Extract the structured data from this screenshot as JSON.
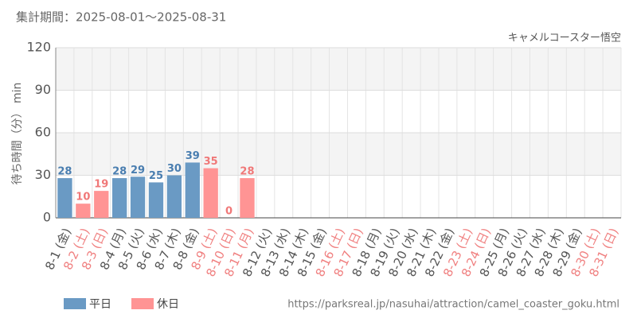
{
  "chart_data": {
    "type": "bar",
    "period": "集計期間：2025-08-01～2025-08-31",
    "title": "キャメルコースター悟空",
    "y_label": "待ち時間（分） min",
    "source": "https://parksreal.jp/nasuhai/attraction/camel_coaster_goku.html",
    "categories": [
      "8-1 (金)",
      "8-2 (土)",
      "8-3 (日)",
      "8-4 (月)",
      "8-5 (火)",
      "8-6 (水)",
      "8-7 (木)",
      "8-8 (金)",
      "8-9 (土)",
      "8-10 (日)",
      "8-11 (月)",
      "8-12 (火)",
      "8-13 (水)",
      "8-14 (木)",
      "8-15 (金)",
      "8-16 (土)",
      "8-17 (日)",
      "8-18 (月)",
      "8-19 (火)",
      "8-20 (水)",
      "8-21 (木)",
      "8-22 (金)",
      "8-23 (土)",
      "8-24 (日)",
      "8-25 (月)",
      "8-26 (火)",
      "8-27 (水)",
      "8-28 (木)",
      "8-29 (金)",
      "8-30 (土)",
      "8-31 (日)"
    ],
    "category_colors": [
      "#555",
      "#f08080",
      "#f08080",
      "#555",
      "#555",
      "#555",
      "#555",
      "#555",
      "#f08080",
      "#f08080",
      "#f08080",
      "#555",
      "#555",
      "#555",
      "#555",
      "#f08080",
      "#f08080",
      "#555",
      "#555",
      "#555",
      "#555",
      "#555",
      "#f08080",
      "#f08080",
      "#555",
      "#555",
      "#555",
      "#555",
      "#555",
      "#f08080",
      "#f08080"
    ],
    "series": [
      {
        "name": "平日",
        "color": "#6a9ac4",
        "label_color": "#4a7eb0",
        "values": [
          28,
          null,
          null,
          28,
          29,
          25,
          30,
          39,
          null,
          null,
          null,
          null,
          null,
          null,
          null,
          null,
          null,
          null,
          null,
          null,
          null,
          null,
          null,
          null,
          null,
          null,
          null,
          null,
          null,
          null,
          null
        ]
      },
      {
        "name": "休日",
        "color": "#ff9494",
        "label_color": "#f07878",
        "values": [
          null,
          10,
          19,
          null,
          null,
          null,
          null,
          null,
          35,
          0,
          28,
          null,
          null,
          null,
          null,
          null,
          null,
          null,
          null,
          null,
          null,
          null,
          null,
          null,
          null,
          null,
          null,
          null,
          null,
          null,
          null
        ]
      }
    ],
    "ylim": [
      0,
      120
    ],
    "yticks": [
      0,
      30,
      60,
      90,
      120
    ],
    "grid": true
  }
}
